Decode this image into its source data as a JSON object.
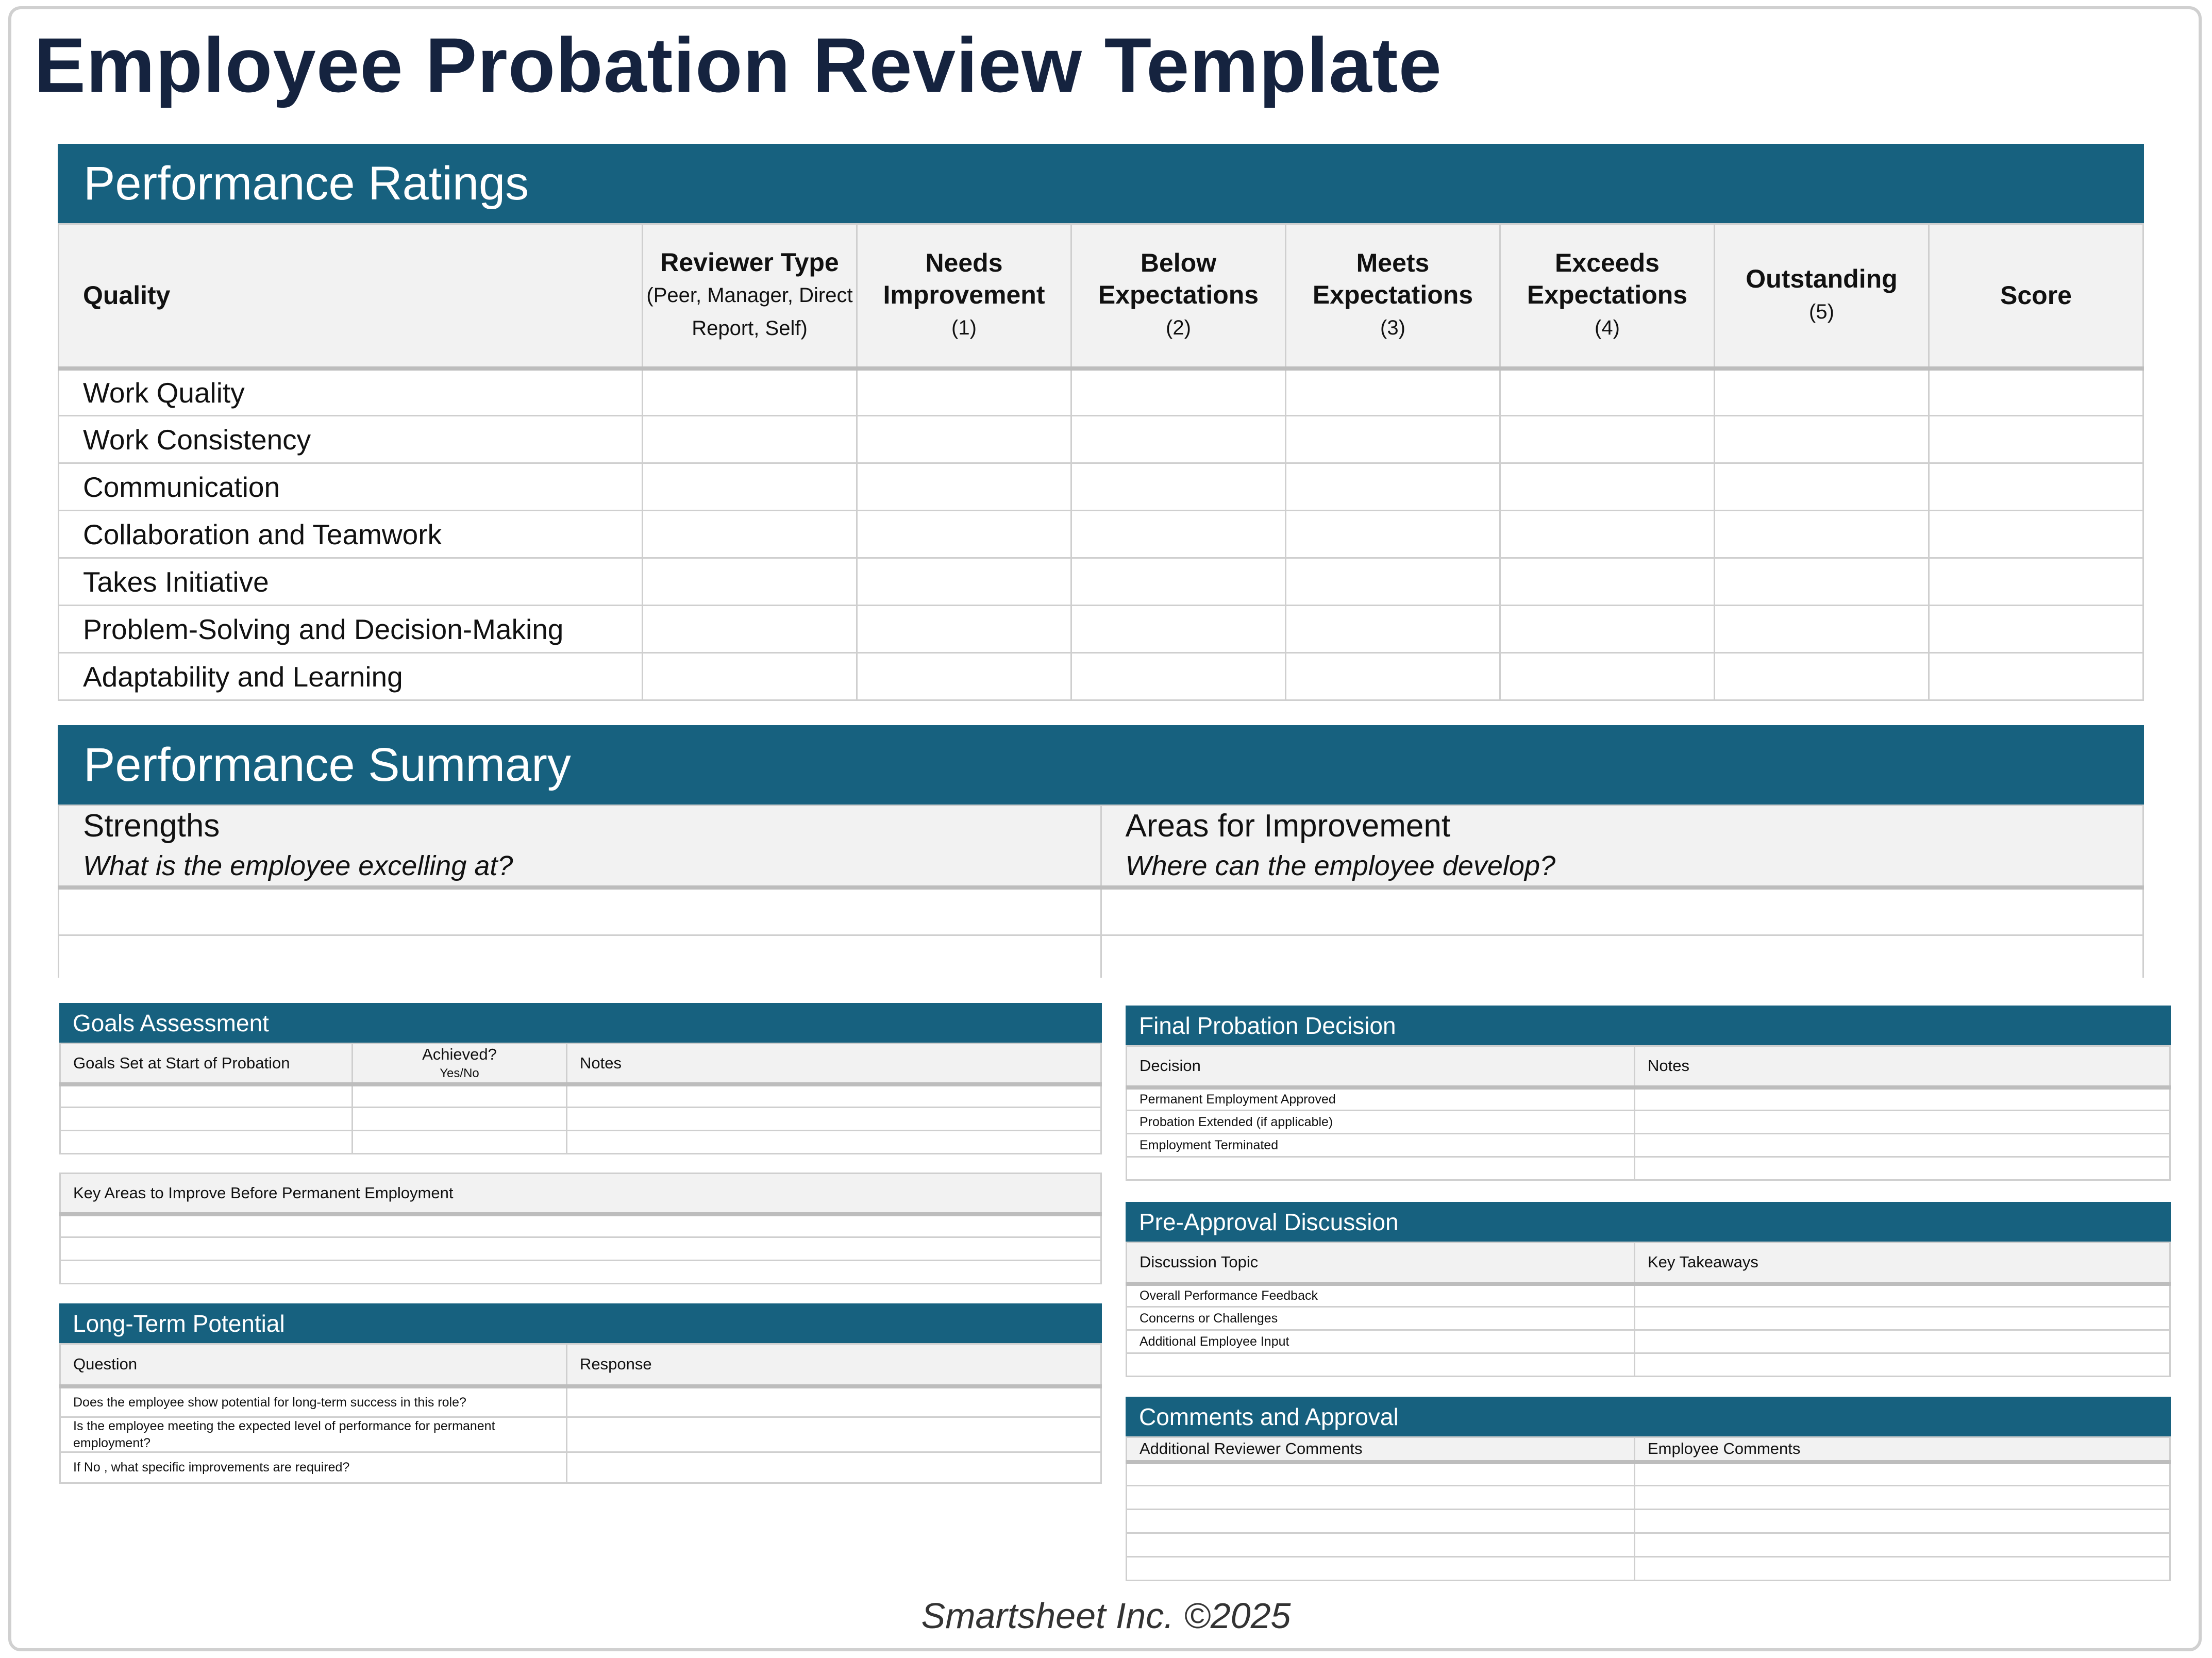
{
  "title": "Employee Probation Review Template",
  "colors": {
    "section_bar": "#17617f",
    "header_bg": "#f2f2f2",
    "title": "#15233f"
  },
  "performance_ratings": {
    "heading": "Performance Ratings",
    "columns": [
      {
        "label": "Quality",
        "sub": ""
      },
      {
        "label": "Reviewer Type",
        "sub": "(Peer, Manager, Direct Report, Self)"
      },
      {
        "label": "Needs Improvement",
        "sub": "(1)"
      },
      {
        "label": "Below Expectations",
        "sub": "(2)"
      },
      {
        "label": "Meets Expectations",
        "sub": "(3)"
      },
      {
        "label": "Exceeds Expectations",
        "sub": "(4)"
      },
      {
        "label": "Outstanding",
        "sub": "(5)"
      },
      {
        "label": "Score",
        "sub": ""
      }
    ],
    "rows": [
      "Work Quality",
      "Work Consistency",
      "Communication",
      "Collaboration and Teamwork",
      "Takes Initiative",
      "Problem-Solving and Decision-Making",
      "Adaptability and Learning"
    ]
  },
  "performance_summary": {
    "heading": "Performance Summary",
    "strengths": {
      "label": "Strengths",
      "prompt": "What is the employee excelling at?"
    },
    "improvement": {
      "label": "Areas for Improvement",
      "prompt": "Where can the employee develop?"
    }
  },
  "goals": {
    "heading": "Goals Assessment",
    "col1": "Goals Set at Start of Probation",
    "col2": "Achieved?",
    "col2_sub": "Yes/No",
    "col3": "Notes"
  },
  "key_areas": {
    "heading": "Key Areas to Improve Before Permanent Employment"
  },
  "long_term": {
    "heading": "Long-Term Potential",
    "col1": "Question",
    "col2": "Response",
    "questions": [
      "Does the employee show potential for long-term success in this role?",
      "Is the employee meeting the expected level of performance for permanent employment?",
      "If No , what specific improvements are required?"
    ]
  },
  "final_decision": {
    "heading": "Final Probation Decision",
    "col1": "Decision",
    "col2": "Notes",
    "rows": [
      "Permanent Employment Approved",
      "Probation Extended (if applicable)",
      "Employment Terminated",
      ""
    ]
  },
  "pre_approval": {
    "heading": "Pre-Approval Discussion",
    "col1": "Discussion Topic",
    "col2": "Key Takeaways",
    "rows": [
      "Overall Performance Feedback",
      "Concerns or Challenges",
      "Additional Employee Input",
      ""
    ]
  },
  "comments": {
    "heading": "Comments and Approval",
    "col1": "Additional Reviewer Comments",
    "col2": "Employee Comments"
  },
  "footer": "Smartsheet Inc. ©2025"
}
